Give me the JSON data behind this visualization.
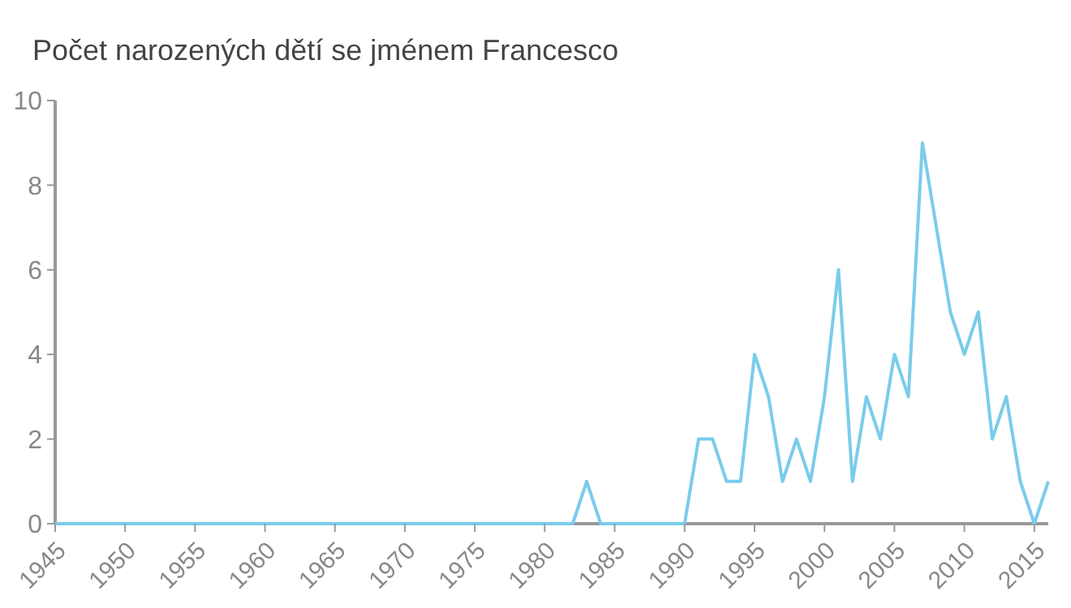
{
  "chart_data": {
    "type": "line",
    "title": "Počet narozených dětí se jménem Francesco",
    "x": [
      1945,
      1946,
      1947,
      1948,
      1949,
      1950,
      1951,
      1952,
      1953,
      1954,
      1955,
      1956,
      1957,
      1958,
      1959,
      1960,
      1961,
      1962,
      1963,
      1964,
      1965,
      1966,
      1967,
      1968,
      1969,
      1970,
      1971,
      1972,
      1973,
      1974,
      1975,
      1976,
      1977,
      1978,
      1979,
      1980,
      1981,
      1982,
      1983,
      1984,
      1985,
      1986,
      1987,
      1988,
      1989,
      1990,
      1991,
      1992,
      1993,
      1994,
      1995,
      1996,
      1997,
      1998,
      1999,
      2000,
      2001,
      2002,
      2003,
      2004,
      2005,
      2006,
      2007,
      2008,
      2009,
      2010,
      2011,
      2012,
      2013,
      2014,
      2015,
      2016
    ],
    "series": [
      {
        "color": "#7accea",
        "values": [
          0,
          0,
          0,
          0,
          0,
          0,
          0,
          0,
          0,
          0,
          0,
          0,
          0,
          0,
          0,
          0,
          0,
          0,
          0,
          0,
          0,
          0,
          0,
          0,
          0,
          0,
          0,
          0,
          0,
          0,
          0,
          0,
          0,
          0,
          0,
          0,
          0,
          0,
          1,
          0,
          0,
          0,
          0,
          0,
          0,
          0,
          2,
          2,
          1,
          1,
          4,
          3,
          1,
          2,
          1,
          3,
          6,
          1,
          3,
          2,
          4,
          3,
          9,
          7,
          5,
          4,
          5,
          2,
          3,
          1,
          0,
          1
        ]
      }
    ],
    "xlim": [
      1945,
      2016
    ],
    "xticks": [
      1945,
      1950,
      1955,
      1960,
      1965,
      1970,
      1975,
      1980,
      1985,
      1990,
      1995,
      2000,
      2005,
      2010,
      2015
    ],
    "ylim": [
      0,
      10
    ],
    "yticks": [
      0,
      2,
      4,
      6,
      8,
      10
    ],
    "grid": false,
    "marker": "none",
    "line_style": "solid"
  }
}
